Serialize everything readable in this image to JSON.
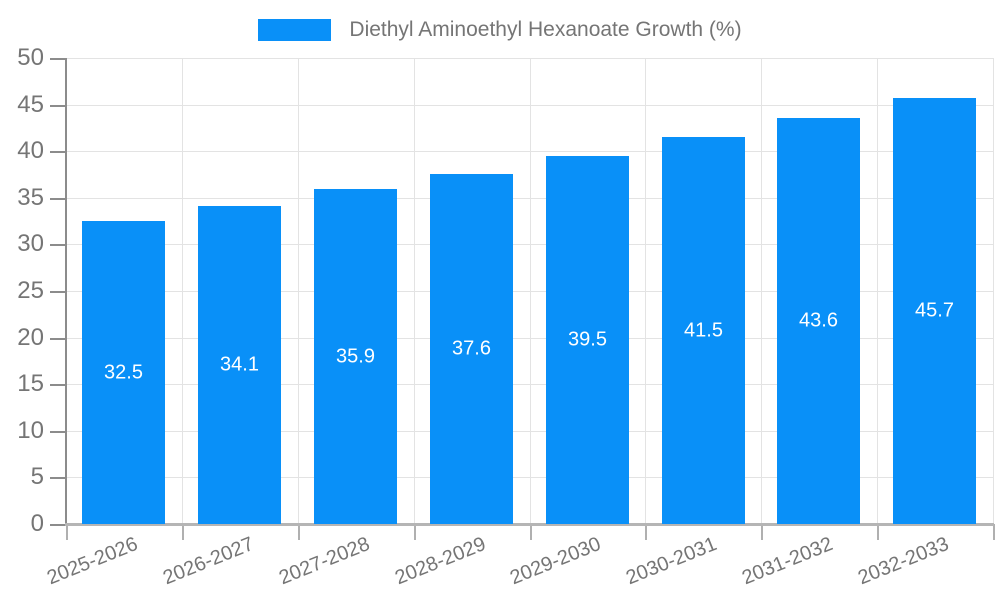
{
  "chart_data": {
    "type": "bar",
    "title": "Diethyl Aminoethyl Hexanoate Growth (%)",
    "categories": [
      "2025-2026",
      "2026-2027",
      "2027-2028",
      "2028-2029",
      "2029-2030",
      "2030-2031",
      "2031-2032",
      "2032-2033"
    ],
    "values": [
      32.5,
      34.1,
      35.9,
      37.6,
      39.5,
      41.5,
      43.6,
      45.7
    ],
    "value_labels": [
      "32.5",
      "34.1",
      "35.9",
      "37.6",
      "39.5",
      "41.5",
      "43.6",
      "45.7"
    ],
    "ylim": [
      0,
      50
    ],
    "yticks": [
      0,
      5,
      10,
      15,
      20,
      25,
      30,
      35,
      40,
      45,
      50
    ],
    "grid": true,
    "legend_position": "top",
    "colors": {
      "bar": "#0990f8",
      "bar_value_text": "#ffffff",
      "axis_text": "#757575",
      "gridline": "#e3e3e3",
      "y_axis_line": "#8c8c8c",
      "x_axis_line": "#b5b5b5",
      "background": "#ffffff"
    }
  }
}
